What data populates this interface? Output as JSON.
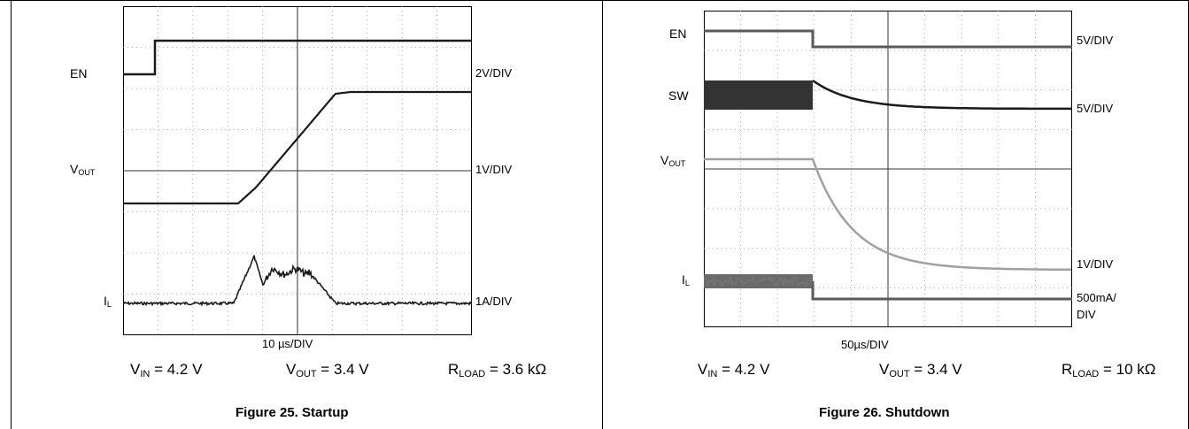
{
  "chart_data": [
    {
      "type": "line",
      "title": "Figure 25. Startup",
      "xlabel": "10 µs/DIV",
      "x_divisions": 10,
      "y_divisions": 8,
      "grid": true,
      "traces": [
        {
          "name": "EN",
          "scale": "2V/DIV"
        },
        {
          "name": "V_OUT",
          "scale": "1V/DIV"
        },
        {
          "name": "I_L",
          "scale": "1A/DIV"
        }
      ],
      "conditions": {
        "vin": "4.2 V",
        "vout": "3.4 V",
        "rload": "3.6 kΩ"
      }
    },
    {
      "type": "line",
      "title": "Figure 26. Shutdown",
      "xlabel": "50µs/DIV",
      "x_divisions": 10,
      "y_divisions": 8,
      "grid": true,
      "traces": [
        {
          "name": "EN",
          "scale": "5V/DIV"
        },
        {
          "name": "SW",
          "scale": "5V/DIV"
        },
        {
          "name": "V_OUT",
          "scale": "1V/DIV"
        },
        {
          "name": "I_L",
          "scale": "500mA/ DIV"
        }
      ],
      "conditions": {
        "vin": "4.2 V",
        "vout": "3.4 V",
        "rload": "10 kΩ"
      }
    }
  ],
  "left": {
    "caption": "Figure 25. Startup",
    "xlabel": "10 µs/DIV",
    "traces": {
      "en": "EN",
      "vout_main": "V",
      "vout_sub": "OUT",
      "il_main": "I",
      "il_sub": "L"
    },
    "scales": {
      "en": "2V/DIV",
      "vout": "1V/DIV",
      "il": "1A/DIV"
    },
    "cond": {
      "vin_main": "V",
      "vin_sub": "IN",
      "vin_val": " = 4.2 V",
      "vout_main": "V",
      "vout_sub": "OUT",
      "vout_val": " = 3.4 V",
      "rload_main": "R",
      "rload_sub": "LOAD",
      "rload_val": " = 3.6 kΩ"
    }
  },
  "right": {
    "caption": "Figure 26. Shutdown",
    "xlabel": "50µs/DIV",
    "traces": {
      "en": "EN",
      "sw": "SW",
      "vout_main": "V",
      "vout_sub": "OUT",
      "il_main": "I",
      "il_sub": "L"
    },
    "scales": {
      "en": "5V/DIV",
      "sw": "5V/DIV",
      "vout": "1V/DIV",
      "il_line1": "500mA/",
      "il_line2": "DIV"
    },
    "cond": {
      "vin_main": "V",
      "vin_sub": "IN",
      "vin_val": " = 4.2 V",
      "vout_main": "V",
      "vout_sub": "OUT",
      "vout_val": " = 3.4 V",
      "rload_main": "R",
      "rload_sub": "LOAD",
      "rload_val": " = 10 kΩ"
    }
  },
  "colors": {
    "grid": "#9a9a9a",
    "trace_dark": "#1a1a1a",
    "trace_mid": "#5a5a5a",
    "trace_light": "#a0a0a0"
  }
}
